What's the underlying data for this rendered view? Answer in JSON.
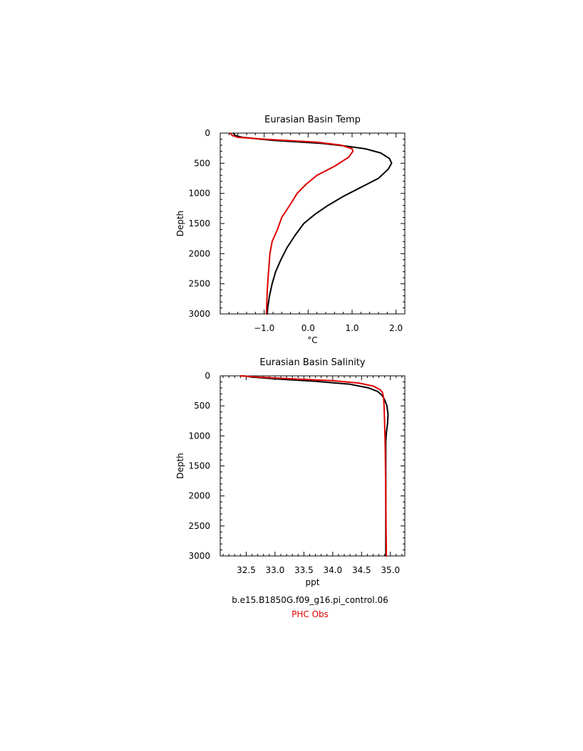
{
  "chart_data": [
    {
      "type": "line",
      "title": "Eurasian Basin Temp",
      "xlabel": "°C",
      "ylabel": "Depth",
      "xlim": [
        -2.0,
        2.2
      ],
      "ylim": [
        3000,
        0
      ],
      "y_reversed": true,
      "xticks": [
        -1.0,
        0.0,
        1.0,
        2.0
      ],
      "xtick_labels": [
        "−1.0",
        "0.0",
        "1.0",
        "2.0"
      ],
      "yticks": [
        0,
        500,
        1000,
        1500,
        2000,
        2500,
        3000
      ],
      "ytick_labels": [
        "0",
        "500",
        "1000",
        "1500",
        "2000",
        "2500",
        "3000"
      ],
      "series": [
        {
          "color": "#000000",
          "points": [
            [
              -1.7,
              0
            ],
            [
              -1.66,
              40
            ],
            [
              -1.5,
              70
            ],
            [
              -0.8,
              120
            ],
            [
              0.3,
              170
            ],
            [
              0.8,
              210
            ],
            [
              1.3,
              260
            ],
            [
              1.65,
              330
            ],
            [
              1.85,
              420
            ],
            [
              1.9,
              500
            ],
            [
              1.82,
              600
            ],
            [
              1.6,
              750
            ],
            [
              1.2,
              900
            ],
            [
              0.8,
              1050
            ],
            [
              0.45,
              1200
            ],
            [
              0.15,
              1350
            ],
            [
              -0.1,
              1500
            ],
            [
              -0.3,
              1700
            ],
            [
              -0.48,
              1900
            ],
            [
              -0.62,
              2100
            ],
            [
              -0.74,
              2300
            ],
            [
              -0.82,
              2500
            ],
            [
              -0.88,
              2700
            ],
            [
              -0.92,
              2900
            ],
            [
              -0.93,
              3000
            ]
          ]
        },
        {
          "color": "#e00000",
          "points": [
            [
              -1.78,
              0
            ],
            [
              -1.72,
              40
            ],
            [
              -1.6,
              70
            ],
            [
              -1.0,
              100
            ],
            [
              0.2,
              150
            ],
            [
              0.75,
              200
            ],
            [
              1.0,
              260
            ],
            [
              1.02,
              300
            ],
            [
              0.92,
              400
            ],
            [
              0.6,
              550
            ],
            [
              0.2,
              700
            ],
            [
              -0.05,
              850
            ],
            [
              -0.25,
              1000
            ],
            [
              -0.42,
              1200
            ],
            [
              -0.6,
              1400
            ],
            [
              -0.7,
              1600
            ],
            [
              -0.82,
              1800
            ],
            [
              -0.87,
              2000
            ],
            [
              -0.9,
              2300
            ],
            [
              -0.93,
              2600
            ],
            [
              -0.95,
              3000
            ]
          ]
        }
      ]
    },
    {
      "type": "line",
      "title": "Eurasian Basin Salinity",
      "xlabel": "ppt",
      "ylabel": "Depth",
      "xlim": [
        32.05,
        35.25
      ],
      "ylim": [
        3000,
        0
      ],
      "y_reversed": true,
      "xticks": [
        32.5,
        33.0,
        33.5,
        34.0,
        34.5,
        35.0
      ],
      "xtick_labels": [
        "32.5",
        "33.0",
        "33.5",
        "34.0",
        "34.5",
        "35.0"
      ],
      "yticks": [
        0,
        500,
        1000,
        1500,
        2000,
        2500,
        3000
      ],
      "ytick_labels": [
        "0",
        "500",
        "1000",
        "1500",
        "2000",
        "2500",
        "3000"
      ],
      "series": [
        {
          "color": "#000000",
          "points": [
            [
              32.45,
              0
            ],
            [
              32.6,
              20
            ],
            [
              33.0,
              50
            ],
            [
              33.7,
              90
            ],
            [
              34.3,
              140
            ],
            [
              34.62,
              200
            ],
            [
              34.78,
              260
            ],
            [
              34.86,
              330
            ],
            [
              34.9,
              400
            ],
            [
              34.94,
              500
            ],
            [
              34.96,
              650
            ],
            [
              34.95,
              800
            ],
            [
              34.93,
              950
            ],
            [
              34.92,
              1100
            ],
            [
              34.92,
              1300
            ],
            [
              34.92,
              1600
            ],
            [
              34.92,
              2000
            ],
            [
              34.92,
              2500
            ],
            [
              34.92,
              3000
            ]
          ]
        },
        {
          "color": "#e00000",
          "points": [
            [
              32.4,
              0
            ],
            [
              32.7,
              20
            ],
            [
              33.3,
              50
            ],
            [
              34.0,
              80
            ],
            [
              34.45,
              120
            ],
            [
              34.7,
              170
            ],
            [
              34.82,
              230
            ],
            [
              34.86,
              270
            ],
            [
              34.88,
              350
            ],
            [
              34.89,
              500
            ],
            [
              34.9,
              800
            ],
            [
              34.91,
              1200
            ],
            [
              34.92,
              2000
            ],
            [
              34.93,
              3000
            ]
          ]
        }
      ]
    }
  ],
  "legend": {
    "case_label": "b.e15.B1850G.f09_g16.pi_control.06",
    "obs_label": "PHC Obs",
    "case_color": "#000000",
    "obs_color": "#e00000"
  }
}
